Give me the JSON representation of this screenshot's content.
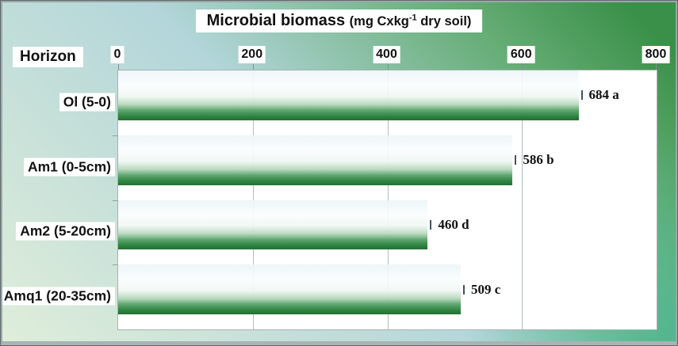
{
  "chart_data": {
    "type": "bar",
    "orientation": "horizontal",
    "title": "Microbial biomass",
    "unit_prefix": "(mg Cxkg",
    "unit_sup": "-1",
    "unit_suffix": " dry soil)",
    "axis_category_label": "Horizon",
    "categories": [
      "Ol (5-0)",
      "Am1 (0-5cm)",
      "Am2 (5-20cm)",
      "Amq1 (20-35cm)"
    ],
    "values": [
      684,
      586,
      460,
      509
    ],
    "value_labels": [
      "684 a",
      "586 b",
      "460 d",
      "509 c"
    ],
    "x_ticks": [
      "0",
      "200",
      "400",
      "600",
      "800"
    ],
    "xlim": [
      0,
      800
    ],
    "grid": true,
    "gridlines_at": [
      200,
      400,
      600
    ],
    "legend": "none",
    "colors": {
      "bar_gradient_top": "#ecf5f8",
      "bar_gradient_bottom": "#256d34",
      "background_green": "#3a9048",
      "background_blue": "#b3d6da",
      "background_pale": "#dfeeda",
      "background_teal": "#48b58c",
      "plot_background": "#ffffff",
      "gridline": "#b4bcbc",
      "text": "#111111"
    }
  }
}
